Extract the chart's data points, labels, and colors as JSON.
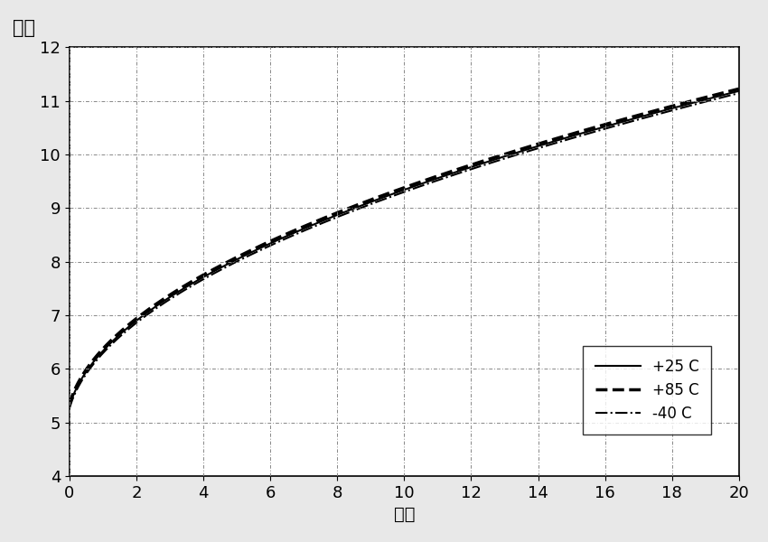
{
  "ylabel_label": "吉赫",
  "xlabel_label": "伏特",
  "ylabel_label_fontsize": 15,
  "xlabel_label_fontsize": 14,
  "xlim": [
    0,
    20
  ],
  "ylim": [
    4,
    12
  ],
  "xticks": [
    0,
    2,
    4,
    6,
    8,
    10,
    12,
    14,
    16,
    18,
    20
  ],
  "yticks": [
    4,
    5,
    6,
    7,
    8,
    9,
    10,
    11,
    12
  ],
  "grid_color": "#888888",
  "background_color": "#ffffff",
  "fig_background": "#e8e8e8",
  "curve_color": "#000000",
  "legend_entries": [
    "+25 C",
    "+85 C",
    "-40 C"
  ],
  "legend_linestyles": [
    "-",
    "--",
    "-."
  ],
  "legend_linewidths": [
    1.5,
    2.5,
    1.5
  ],
  "curve_x_start": 0,
  "curve_x_end": 20,
  "curve_a": 4.85,
  "curve_b": 1.413,
  "curve_c": 0.1,
  "offsets": [
    0.0,
    0.04,
    -0.04
  ]
}
